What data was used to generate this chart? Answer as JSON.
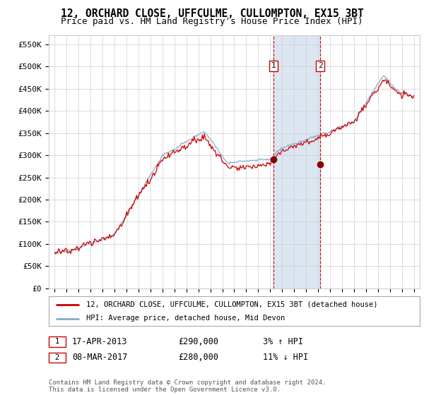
{
  "title": "12, ORCHARD CLOSE, UFFCULME, CULLOMPTON, EX15 3BT",
  "subtitle": "Price paid vs. HM Land Registry's House Price Index (HPI)",
  "ylabel_ticks": [
    "£0",
    "£50K",
    "£100K",
    "£150K",
    "£200K",
    "£250K",
    "£300K",
    "£350K",
    "£400K",
    "£450K",
    "£500K",
    "£550K"
  ],
  "ytick_values": [
    0,
    50000,
    100000,
    150000,
    200000,
    250000,
    300000,
    350000,
    400000,
    450000,
    500000,
    550000
  ],
  "ylim": [
    0,
    570000
  ],
  "xlim_start": 1994.5,
  "xlim_end": 2025.5,
  "purchase1": {
    "date": "17-APR-2013",
    "year": 2013.29,
    "price": 290000,
    "label": "1",
    "hpi_diff": "3% ↑ HPI"
  },
  "purchase2": {
    "date": "08-MAR-2017",
    "year": 2017.19,
    "price": 280000,
    "label": "2",
    "hpi_diff": "11% ↓ HPI"
  },
  "legend_property": "12, ORCHARD CLOSE, UFFCULME, CULLOMPTON, EX15 3BT (detached house)",
  "legend_hpi": "HPI: Average price, detached house, Mid Devon",
  "footnote": "Contains HM Land Registry data © Crown copyright and database right 2024.\nThis data is licensed under the Open Government Licence v3.0.",
  "line_color_property": "#cc0000",
  "line_color_hpi": "#88aacc",
  "highlight_color": "#dce6f1",
  "dashed_line_color": "#cc0000",
  "background_color": "#ffffff",
  "grid_color": "#cccccc",
  "title_fontsize": 10.5,
  "subtitle_fontsize": 9,
  "tick_fontsize": 8,
  "legend_fontsize": 7.5,
  "annotation_fontsize": 8,
  "footnote_fontsize": 6.5
}
